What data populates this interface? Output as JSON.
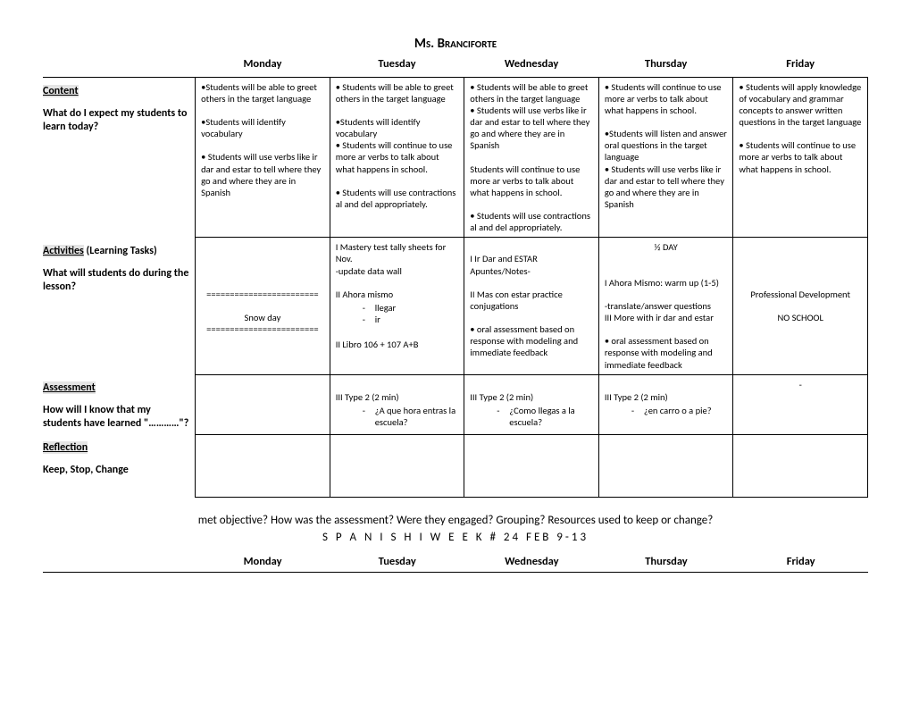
{
  "title": "Ms. Branciforte",
  "days": [
    "Monday",
    "Tuesday",
    "Wednesday",
    "Thursday",
    "Friday"
  ],
  "rows": {
    "content": {
      "heading_ul": "Content",
      "subheading": "What do I expect my students to learn today?",
      "cells": [
        "•Students will be able to greet others in the target language\n\n•Students will identify vocabulary\n\n• Students will use verbs like ir dar and estar to tell where they go and where they are in Spanish",
        "• Students will be able to greet others in the target language\n\n•Students will identify vocabulary\n• Students will continue to use more ar verbs to talk about what happens in school.\n\n• Students will use contractions al and del appropriately.",
        "• Students will be able to greet others in the target language\n• Students will use verbs like ir dar and estar to tell where they go and where they are in Spanish\n\nStudents will continue to use more ar verbs to talk about what happens in school.\n\n• Students will use contractions al and del appropriately.",
        "• Students will continue to use more ar verbs to talk about what happens in school.\n\n•Students will listen and answer oral questions in the target language\n• Students will use verbs like ir dar and estar to tell where they go and where they are in Spanish",
        "• Students will apply knowledge of vocabulary and grammar concepts to answer written questions in the target language\n\n• Students will continue to use more ar verbs to talk about what happens in school."
      ]
    },
    "activities": {
      "heading_ul": "Activities",
      "heading_plain": "(Learning Tasks)",
      "subheading": "What will students do during the lesson?",
      "cells": [
        "\n\n\n\n========================\n\nSnow day\n========================",
        "I Mastery test tally sheets for Nov.\n-update data wall\n\nII Ahora mismo",
        "\nI Ir Dar and ESTAR\nApuntes/Notes-\n\nII Mas con estar practice conjugations\n\n• oral assessment based on response with modeling and immediate feedback",
        "½  DAY\n\n\nI Ahora Mismo: warm up (1-5)\n\n-translate/answer questions\nIII More with ir dar and estar\n\n• oral assessment based on response with modeling and immediate feedback",
        "\n\n\n\nProfessional    Development\n\nNO SCHOOL"
      ],
      "tue_list": [
        "llegar",
        "ir"
      ],
      "tue_after": "\nII  Libro 106 + 107  A+B"
    },
    "assessment": {
      "heading_ul": "Assessment",
      "subheading": "How will I know that my students have learned \"…………\"?",
      "cells": [
        "",
        "III Type 2  (2 min)",
        "III Type 2  (2 min)",
        "III Type 2  (2 min)",
        "-"
      ],
      "qs": [
        "",
        "¿A que hora entras la escuela?",
        "¿Como llegas a la escuela?",
        "¿en carro o a pie?",
        ""
      ]
    },
    "reflection": {
      "heading_ul": "Reflection",
      "subheading": "Keep, Stop, Change"
    }
  },
  "footer": {
    "questions": "met objective?  How was the assessment?   Were they engaged?  Grouping?   Resources used to keep or change?",
    "week_line": "S P A N I S H   I             W E E K  # 24            FEB   9-13"
  }
}
